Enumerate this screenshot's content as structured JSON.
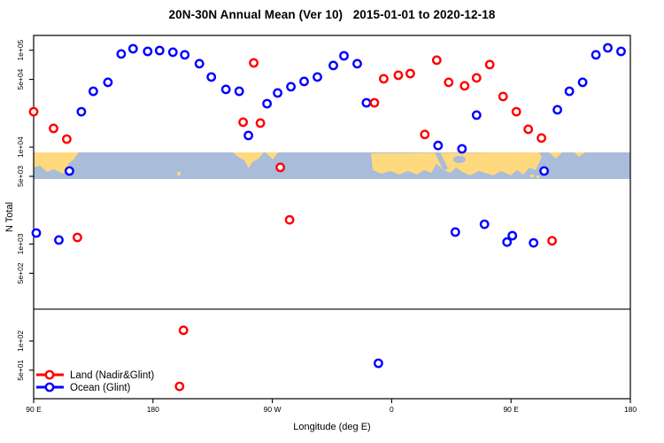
{
  "chart": {
    "title": "20N-30N Annual Mean (Ver 10)   2015-01-01 to 2020-12-18",
    "xlabel": "Longitude (deg E)",
    "ylabel": "N Total"
  },
  "chart_data": {
    "type": "scatter",
    "title": "20N-30N Annual Mean (Ver 10)   2015-01-01 to 2020-12-18",
    "xlabel": "Longitude (deg E)",
    "ylabel": "N Total",
    "x_axis": {
      "range": [
        90,
        540
      ],
      "ticks": [
        90,
        180,
        270,
        360,
        450,
        540
      ],
      "tick_labels": [
        "90 E",
        "180",
        "90 W",
        "0",
        "90 E",
        "180"
      ]
    },
    "y_axis": {
      "scale": "log",
      "range": [
        25.4,
        142000
      ],
      "ticks": [
        100000,
        50000,
        10000,
        5000,
        1000,
        500,
        100,
        50
      ],
      "tick_labels": [
        "1e+05",
        "5e+04",
        "1e+04",
        "5e+03",
        "1e+03",
        "5e+02",
        "1e+02",
        "5e+01"
      ]
    },
    "horizontal_line_y": 213,
    "map_band": {
      "y_range": [
        4690,
        8820
      ],
      "ocean_color": "#A9BCD9",
      "land_color": "#FFD97E",
      "description": "20N-30N latitude strip world map"
    },
    "legend_position": "bottom-left",
    "series": [
      {
        "name": "Ocean (Glint)",
        "color": "#0000FF",
        "marker": "open-circle",
        "points": [
          [
            126,
            23200
          ],
          [
            135,
            37700
          ],
          [
            146,
            46600
          ],
          [
            156,
            91400
          ],
          [
            165,
            103600
          ],
          [
            176,
            97300
          ],
          [
            185,
            99300
          ],
          [
            195,
            95300
          ],
          [
            204,
            89500
          ],
          [
            215,
            72500
          ],
          [
            224,
            52900
          ],
          [
            235,
            39400
          ],
          [
            245,
            37700
          ],
          [
            252,
            13200
          ],
          [
            266,
            28100
          ],
          [
            274,
            36200
          ],
          [
            284,
            42000
          ],
          [
            294,
            47600
          ],
          [
            304,
            52900
          ],
          [
            316,
            69500
          ],
          [
            324,
            87500
          ],
          [
            334,
            72500
          ],
          [
            341,
            28700
          ],
          [
            395,
            10400
          ],
          [
            413,
            9600
          ],
          [
            424,
            21400
          ],
          [
            485,
            24300
          ],
          [
            494,
            37700
          ],
          [
            504,
            46600
          ],
          [
            514,
            89500
          ],
          [
            523,
            105700
          ],
          [
            533,
            97300
          ],
          [
            117,
            5670
          ],
          [
            475,
            5670
          ],
          [
            92,
            1300
          ],
          [
            109,
            1100
          ],
          [
            408,
            1330
          ],
          [
            430,
            1600
          ],
          [
            447,
            1050
          ],
          [
            451,
            1220
          ],
          [
            467,
            1030
          ],
          [
            350,
            59
          ]
        ]
      },
      {
        "name": "Land (Nadir&Glint)",
        "color": "#FF0000",
        "marker": "open-circle",
        "points": [
          [
            90,
            23200
          ],
          [
            105,
            15600
          ],
          [
            115,
            12100
          ],
          [
            248,
            18100
          ],
          [
            256,
            74000
          ],
          [
            261,
            17700
          ],
          [
            276,
            6180
          ],
          [
            283,
            1780
          ],
          [
            347,
            28700
          ],
          [
            354,
            50700
          ],
          [
            365,
            55200
          ],
          [
            374,
            57500
          ],
          [
            385,
            13500
          ],
          [
            394,
            78900
          ],
          [
            403,
            46600
          ],
          [
            415,
            42900
          ],
          [
            424,
            51800
          ],
          [
            434,
            71000
          ],
          [
            444,
            33300
          ],
          [
            454,
            23200
          ],
          [
            463,
            15300
          ],
          [
            473,
            12400
          ],
          [
            481,
            1080
          ],
          [
            123,
            1170
          ],
          [
            203,
            129
          ],
          [
            200,
            34
          ]
        ]
      }
    ],
    "legend_order": [
      "Land (Nadir&Glint)",
      "Ocean (Glint)"
    ]
  }
}
